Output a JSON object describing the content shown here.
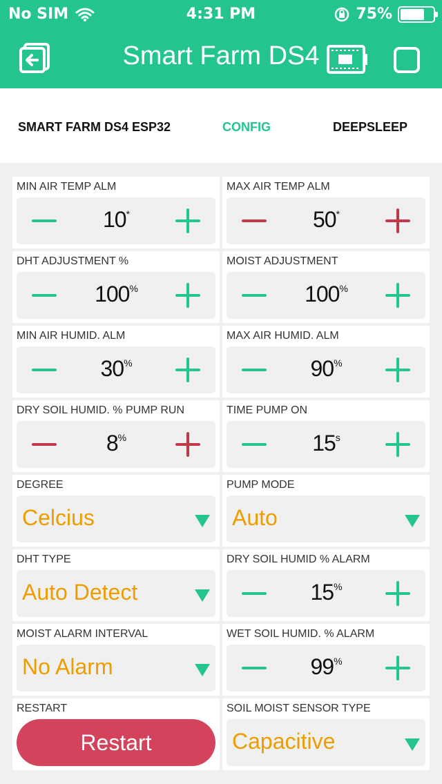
{
  "status_bar": {
    "carrier": "No SIM",
    "time": "4:31 PM",
    "battery": "75%"
  },
  "app_bar": {
    "title": "Smart Farm DS4"
  },
  "tabs": [
    {
      "label": "SMART FARM DS4 ESP32",
      "active": false
    },
    {
      "label": "CONFIG",
      "active": true
    },
    {
      "label": "DEEPSLEEP",
      "active": false
    }
  ],
  "widgets": {
    "min_air_temp": {
      "label": "MIN AIR TEMP ALM",
      "value": "10",
      "unit": "*"
    },
    "max_air_temp": {
      "label": "MAX AIR TEMP ALM",
      "value": "50",
      "unit": "*"
    },
    "dht_adjust": {
      "label": "DHT ADJUSTMENT %",
      "value": "100",
      "unit": "%"
    },
    "moist_adjust": {
      "label": "MOIST ADJUSTMENT",
      "value": "100",
      "unit": "%"
    },
    "min_air_humid": {
      "label": "MIN AIR HUMID. ALM",
      "value": "30",
      "unit": "%"
    },
    "max_air_humid": {
      "label": "MAX AIR HUMID. ALM",
      "value": "90",
      "unit": "%"
    },
    "dry_soil_pump": {
      "label": "DRY SOIL HUMID. % PUMP RUN",
      "value": "8",
      "unit": "%"
    },
    "time_pump_on": {
      "label": "TIME PUMP ON",
      "value": "15",
      "unit": "s"
    },
    "degree": {
      "label": "DEGREE",
      "selected": "Celcius"
    },
    "pump_mode": {
      "label": "PUMP MODE",
      "selected": "Auto"
    },
    "dht_type": {
      "label": "DHT TYPE",
      "selected": "Auto Detect"
    },
    "dry_soil_alarm": {
      "label": "DRY SOIL HUMID % ALARM",
      "value": "15",
      "unit": "%"
    },
    "moist_alarm_interval": {
      "label": "MOIST ALARM INTERVAL",
      "selected": "No Alarm"
    },
    "wet_soil_alarm": {
      "label": "WET SOIL HUMID. % ALARM",
      "value": "99",
      "unit": "%"
    },
    "restart": {
      "label": "RESTART",
      "button": "Restart"
    },
    "soil_sensor_type": {
      "label": "SOIL MOIST SENSOR TYPE",
      "selected": "Capacitive"
    }
  },
  "colors": {
    "accent": "#23c48e",
    "alert": "#c0394b",
    "select_text": "#ed9d00",
    "restart": "#d3435c"
  }
}
